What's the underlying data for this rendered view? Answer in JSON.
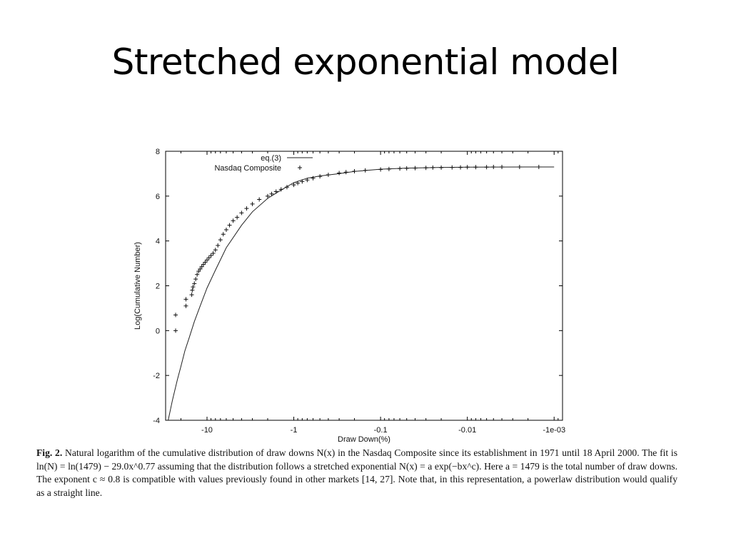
{
  "slide": {
    "title": "Stretched exponential model"
  },
  "caption": {
    "label": "Fig. 2.",
    "text": "Natural logarithm of the cumulative distribution of draw downs N(x) in the Nasdaq Composite since its establishment in 1971 until 18 April 2000. The fit is ln(N) = ln(1479) − 29.0x^0.77 assuming that the distribution follows a stretched exponential N(x) = a exp(−bx^c). Here a = 1479 is the total number of draw downs. The exponent c ≈ 0.8 is compatible with values previously found in other markets [14, 27]. Note that, in this representation, a powerlaw distribution would qualify as a straight line."
  },
  "chart_data": {
    "type": "scatter",
    "xlabel": "Draw Down(%)",
    "ylabel": "Log(Cumulative Number)",
    "x_scale": "log (negated)",
    "xlim": [
      -30,
      -0.0008
    ],
    "ylim": [
      -4,
      8
    ],
    "x_ticks": [
      -10,
      -1,
      -0.1,
      -0.01,
      -0.001
    ],
    "x_tick_labels": [
      "-10",
      "-1",
      "-0.1",
      "-0.01",
      "-1e-03"
    ],
    "y_ticks": [
      -4,
      -2,
      0,
      2,
      4,
      6,
      8
    ],
    "y_tick_labels": [
      "-4",
      "-2",
      "0",
      "2",
      "4",
      "6",
      "8"
    ],
    "legend_position": "top-left",
    "grid": false,
    "series": [
      {
        "name": "eq.(3)",
        "style": "line",
        "x": [
          -28,
          -25,
          -22,
          -20,
          -18,
          -16,
          -14,
          -12,
          -10,
          -8,
          -6,
          -4,
          -3,
          -2,
          -1.5,
          -1,
          -0.7,
          -0.5,
          -0.3,
          -0.2,
          -0.1,
          -0.05,
          -0.02,
          -0.01,
          -0.005,
          -0.002,
          -0.001
        ],
        "y": [
          -4.0,
          -3.1,
          -2.2,
          -1.6,
          -0.9,
          -0.3,
          0.4,
          1.1,
          1.9,
          2.7,
          3.7,
          4.7,
          5.3,
          5.9,
          6.2,
          6.6,
          6.8,
          6.9,
          7.0,
          7.1,
          7.2,
          7.25,
          7.28,
          7.29,
          7.295,
          7.3,
          7.3
        ]
      },
      {
        "name": "Nasdaq Composite",
        "style": "points",
        "x": [
          -23,
          -23,
          -17.5,
          -17.5,
          -15,
          -14.8,
          -14.5,
          -14,
          -13.5,
          -13,
          -12.5,
          -12,
          -11.5,
          -11,
          -10.5,
          -10,
          -9.5,
          -9,
          -8.5,
          -8,
          -7.5,
          -7,
          -6.5,
          -6,
          -5.5,
          -5,
          -4.5,
          -4,
          -3.5,
          -3,
          -2.5,
          -2,
          -1.8,
          -1.6,
          -1.4,
          -1.2,
          -1.0,
          -0.9,
          -0.8,
          -0.7,
          -0.6,
          -0.5,
          -0.4,
          -0.3,
          -0.25,
          -0.2,
          -0.15,
          -0.1,
          -0.08,
          -0.06,
          -0.05,
          -0.04,
          -0.03,
          -0.025,
          -0.02,
          -0.015,
          -0.012,
          -0.01,
          -0.008,
          -0.006,
          -0.005,
          -0.004,
          -0.0025,
          -0.0015
        ],
        "y": [
          0.0,
          0.7,
          1.1,
          1.4,
          1.6,
          1.8,
          1.95,
          2.1,
          2.3,
          2.5,
          2.65,
          2.75,
          2.85,
          2.95,
          3.05,
          3.15,
          3.25,
          3.35,
          3.45,
          3.6,
          3.8,
          4.05,
          4.3,
          4.5,
          4.7,
          4.9,
          5.05,
          5.25,
          5.45,
          5.65,
          5.85,
          6.0,
          6.1,
          6.2,
          6.3,
          6.4,
          6.5,
          6.58,
          6.65,
          6.72,
          6.8,
          6.88,
          6.95,
          7.03,
          7.07,
          7.11,
          7.15,
          7.19,
          7.21,
          7.23,
          7.24,
          7.25,
          7.26,
          7.27,
          7.27,
          7.28,
          7.28,
          7.29,
          7.29,
          7.29,
          7.3,
          7.3,
          7.3,
          7.3
        ]
      }
    ]
  }
}
